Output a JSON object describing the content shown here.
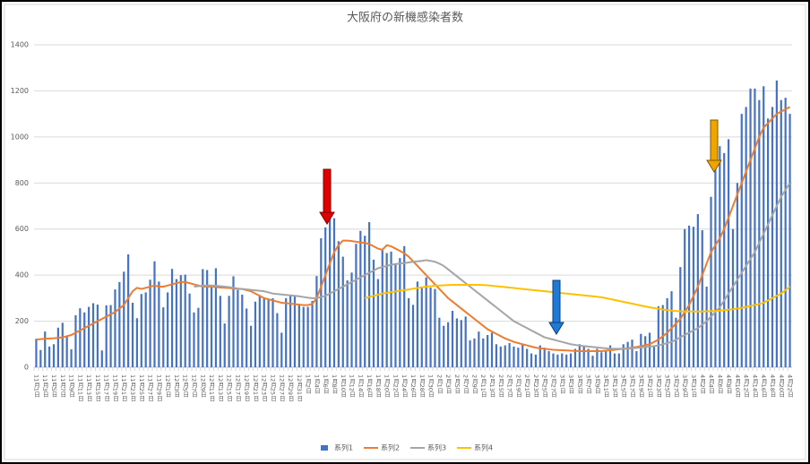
{
  "chart_data": {
    "type": "bar",
    "title": "大阪府の新機感染者数",
    "categories": [
      "11月1日",
      null,
      "11月3日",
      null,
      "11月5日",
      null,
      "11月7日",
      null,
      "11月9日",
      null,
      "11月11日",
      null,
      "11月13日",
      null,
      "11月15日",
      null,
      "11月17日",
      null,
      "11月19日",
      null,
      "11月21日",
      null,
      "11月23日",
      null,
      "11月25日",
      null,
      "11月27日",
      null,
      "11月29日",
      null,
      "12月1日",
      null,
      "12月3日",
      null,
      "12月5日",
      null,
      "12月7日",
      null,
      "12月9日",
      null,
      "12月11日",
      null,
      "12月13日",
      null,
      "12月15日",
      null,
      "12月17日",
      null,
      "12月19日",
      null,
      "12月21日",
      null,
      "12月23日",
      null,
      "12月25日",
      null,
      "12月27日",
      null,
      "12月29日",
      null,
      "12月31日",
      null,
      "1月2日",
      null,
      "1月4日",
      null,
      "1月6日",
      null,
      "1月8日",
      null,
      "1月10日",
      null,
      "1月12日",
      null,
      "1月14日",
      null,
      "1月16日",
      null,
      "1月18日",
      null,
      "1月20日",
      null,
      "1月22日",
      null,
      "1月24日",
      null,
      "1月26日",
      null,
      "1月28日",
      null,
      "1月30日",
      null,
      "2月1日",
      null,
      "2月3日",
      null,
      "2月5日",
      null,
      "2月7日",
      null,
      "2月9日",
      null,
      "2月11日",
      null,
      "2月13日",
      null,
      "2月15日",
      null,
      "2月17日",
      null,
      "2月19日",
      null,
      "2月21日",
      null,
      "2月23日",
      null,
      "2月25日",
      null,
      "2月27日",
      null,
      "3月1日",
      null,
      "3月3日",
      null,
      "3月5日",
      null,
      "3月7日",
      null,
      "3月9日",
      null,
      "3月11日",
      null,
      "3月13日",
      null,
      "3月15日",
      null,
      "3月17日",
      null,
      "3月19日",
      null,
      "3月21日",
      null,
      "3月23日",
      null,
      "3月25日",
      null,
      "3月27日",
      null,
      "3月29日",
      null,
      "3月31日",
      null,
      "4月2日",
      null,
      "4月4日",
      null,
      "4月6日",
      null,
      "4月8日",
      null,
      "4月10日",
      null,
      "4月12日",
      null,
      "4月14日",
      null,
      "4月16日",
      null,
      "4月18日",
      null,
      "4月20日",
      null,
      "4月22日"
    ],
    "series": [
      {
        "name": "系列1",
        "type": "bar",
        "color": "#4472c4",
        "values": [
          124,
          75,
          155,
          90,
          100,
          172,
          193,
          135,
          78,
          226,
          256,
          238,
          262,
          278,
          272,
          73,
          269,
          270,
          338,
          370,
          415,
          490,
          280,
          213,
          318,
          325,
          380,
          460,
          372,
          260,
          325,
          427,
          383,
          400,
          402,
          320,
          238,
          258,
          426,
          422,
          350,
          430,
          310,
          190,
          310,
          395,
          335,
          315,
          255,
          180,
          285,
          312,
          300,
          295,
          300,
          235,
          150,
          300,
          310,
          310,
          275,
          262,
          262,
          288,
          396,
          560,
          607,
          654,
          647,
          547,
          480,
          377,
          411,
          536,
          592,
          571,
          630,
          467,
          383,
          511,
          496,
          502,
          451,
          474,
          526,
          300,
          271,
          372,
          349,
          390,
          346,
          340,
          215,
          180,
          195,
          245,
          212,
          205,
          220,
          117,
          125,
          155,
          125,
          140,
          150,
          100,
          90,
          95,
          105,
          90,
          85,
          100,
          80,
          60,
          55,
          95,
          85,
          70,
          60,
          55,
          60,
          55,
          60,
          80,
          100,
          90,
          80,
          50,
          80,
          65,
          75,
          95,
          60,
          60,
          100,
          110,
          120,
          70,
          145,
          135,
          150,
          90,
          265,
          270,
          300,
          330,
          215,
          435,
          600,
          615,
          610,
          665,
          595,
          350,
          740,
          880,
          960,
          930,
          990,
          600,
          800,
          1100,
          1130,
          1210,
          1210,
          1160,
          1220,
          1080,
          1130,
          1245,
          1160,
          1170,
          1100
        ]
      },
      {
        "name": "系列2",
        "type": "line",
        "color": "#ed7d31",
        "values": [
          120,
          122,
          124,
          125,
          126,
          128,
          130,
          135,
          140,
          150,
          160,
          170,
          180,
          190,
          200,
          210,
          220,
          230,
          240,
          255,
          270,
          300,
          330,
          345,
          340,
          345,
          350,
          355,
          350,
          350,
          355,
          360,
          365,
          370,
          370,
          365,
          360,
          355,
          350,
          350,
          350,
          348,
          346,
          345,
          344,
          342,
          340,
          340,
          335,
          330,
          320,
          310,
          300,
          295,
          290,
          285,
          280,
          278,
          276,
          274,
          272,
          270,
          270,
          275,
          300,
          350,
          400,
          450,
          500,
          530,
          550,
          550,
          548,
          545,
          542,
          540,
          535,
          525,
          515,
          510,
          530,
          525,
          515,
          505,
          495,
          480,
          460,
          440,
          420,
          400,
          380,
          360,
          340,
          320,
          300,
          285,
          270,
          255,
          240,
          225,
          210,
          195,
          180,
          165,
          155,
          145,
          135,
          125,
          118,
          110,
          105,
          100,
          95,
          90,
          85,
          82,
          80,
          78,
          76,
          75,
          74,
          73,
          72,
          71,
          70,
          70,
          70,
          70,
          70,
          70,
          72,
          74,
          76,
          78,
          80,
          82,
          85,
          88,
          92,
          96,
          100,
          110,
          120,
          135,
          150,
          170,
          190,
          210,
          240,
          270,
          310,
          350,
          400,
          450,
          500,
          530,
          560,
          600,
          650,
          700,
          750,
          800,
          850,
          900,
          950,
          1000,
          1040,
          1060,
          1080,
          1100,
          1110,
          1120,
          1130
        ]
      },
      {
        "name": "系列3",
        "type": "line",
        "color": "#a5a5a5",
        "values": [
          null,
          null,
          null,
          null,
          null,
          null,
          null,
          null,
          null,
          null,
          null,
          null,
          null,
          null,
          null,
          null,
          null,
          null,
          null,
          null,
          null,
          null,
          null,
          null,
          null,
          null,
          null,
          null,
          null,
          null,
          null,
          null,
          null,
          null,
          null,
          null,
          350,
          352,
          354,
          355,
          355,
          354,
          352,
          350,
          348,
          345,
          342,
          340,
          338,
          336,
          334,
          332,
          330,
          325,
          320,
          318,
          316,
          314,
          312,
          310,
          308,
          305,
          302,
          300,
          300,
          305,
          310,
          320,
          330,
          340,
          350,
          360,
          370,
          380,
          390,
          400,
          410,
          420,
          430,
          435,
          440,
          445,
          448,
          450,
          452,
          455,
          458,
          460,
          462,
          465,
          462,
          458,
          450,
          440,
          425,
          410,
          395,
          380,
          365,
          350,
          335,
          320,
          305,
          290,
          275,
          260,
          245,
          230,
          215,
          200,
          190,
          180,
          170,
          160,
          150,
          140,
          130,
          125,
          120,
          115,
          110,
          105,
          100,
          97,
          94,
          92,
          90,
          88,
          86,
          84,
          82,
          80,
          80,
          80,
          80,
          80,
          82,
          84,
          86,
          88,
          90,
          92,
          95,
          100,
          105,
          110,
          120,
          130,
          140,
          150,
          160,
          170,
          185,
          200,
          220,
          240,
          260,
          290,
          320,
          350,
          380,
          410,
          440,
          470,
          500,
          540,
          580,
          620,
          660,
          700,
          740,
          770,
          800
        ]
      },
      {
        "name": "系列4",
        "type": "line",
        "color": "#ffc000",
        "values": [
          null,
          null,
          null,
          null,
          null,
          null,
          null,
          null,
          null,
          null,
          null,
          null,
          null,
          null,
          null,
          null,
          null,
          null,
          null,
          null,
          null,
          null,
          null,
          null,
          null,
          null,
          null,
          null,
          null,
          null,
          null,
          null,
          null,
          null,
          null,
          null,
          null,
          null,
          null,
          null,
          null,
          null,
          null,
          null,
          null,
          null,
          null,
          null,
          null,
          null,
          null,
          null,
          null,
          null,
          null,
          null,
          null,
          null,
          null,
          null,
          null,
          null,
          null,
          null,
          null,
          null,
          null,
          null,
          null,
          null,
          null,
          null,
          null,
          null,
          null,
          300,
          305,
          310,
          315,
          320,
          323,
          326,
          329,
          332,
          335,
          338,
          341,
          344,
          347,
          350,
          352,
          354,
          355,
          356,
          357,
          358,
          358,
          358,
          358,
          358,
          358,
          358,
          357,
          356,
          354,
          352,
          350,
          348,
          346,
          344,
          342,
          340,
          338,
          336,
          334,
          332,
          330,
          328,
          326,
          324,
          322,
          320,
          318,
          316,
          314,
          312,
          310,
          308,
          306,
          304,
          300,
          296,
          292,
          288,
          284,
          280,
          276,
          272,
          268,
          264,
          260,
          257,
          254,
          251,
          248,
          246,
          244,
          243,
          242,
          242,
          242,
          242,
          242,
          243,
          244,
          245,
          246,
          248,
          250,
          252,
          255,
          258,
          262,
          266,
          270,
          275,
          280,
          290,
          300,
          310,
          320,
          335,
          350
        ]
      }
    ],
    "ylim": [
      0,
      1400
    ],
    "yticks": [
      0,
      200,
      400,
      600,
      800,
      1000,
      1200,
      1400
    ],
    "grid": true,
    "legend": "bottom"
  }
}
